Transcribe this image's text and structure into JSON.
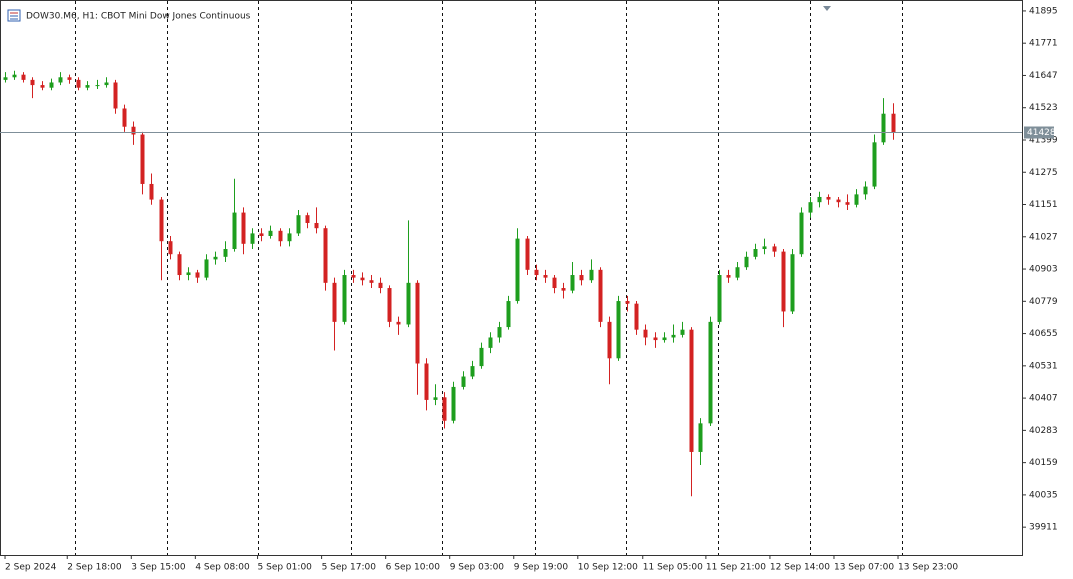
{
  "chart_data": {
    "type": "candlestick",
    "title": "DOW30.M6, H1:  CBOT Mini Dow Jones Continuous",
    "bull_color": "#1e9e1e",
    "bear_color": "#d32222",
    "ylim": [
      39804,
      41937
    ],
    "yticks": [
      41895,
      41771,
      41647,
      41523,
      41399,
      41275,
      41151,
      41027,
      40903,
      40779,
      40655,
      40531,
      40407,
      40283,
      40159,
      40035,
      39911
    ],
    "xlim": [
      -0.55,
      111.15
    ],
    "xticks": [
      {
        "value": 0,
        "label": "2 Sep 2024"
      },
      {
        "value": 6.8,
        "label": "2 Sep 18:00"
      },
      {
        "value": 13.8,
        "label": "3 Sep 15:00"
      },
      {
        "value": 20.8,
        "label": "4 Sep 08:00"
      },
      {
        "value": 27.6,
        "label": "5 Sep 01:00"
      },
      {
        "value": 34.6,
        "label": "5 Sep 17:00"
      },
      {
        "value": 41.6,
        "label": "6 Sep 10:00"
      },
      {
        "value": 48.6,
        "label": "9 Sep 03:00"
      },
      {
        "value": 55.6,
        "label": "9 Sep 19:00"
      },
      {
        "value": 62.6,
        "label": "10 Sep 12:00"
      },
      {
        "value": 69.7,
        "label": "11 Sep 05:00"
      },
      {
        "value": 76.6,
        "label": "11 Sep 21:00"
      },
      {
        "value": 83.6,
        "label": "12 Sep 14:00"
      },
      {
        "value": 90.6,
        "label": "13 Sep 07:00"
      },
      {
        "value": 97.6,
        "label": "13 Sep 23:00"
      }
    ],
    "separators": [
      7.65,
      17.7,
      27.7,
      37.8,
      47.8,
      57.9,
      67.9,
      77.9,
      88.0,
      98.0
    ],
    "current_price": 41428,
    "candles": [
      [
        41630,
        41660,
        41620,
        41640
      ],
      [
        41640,
        41665,
        41630,
        41650
      ],
      [
        41650,
        41660,
        41620,
        41630
      ],
      [
        41630,
        41640,
        41560,
        41610
      ],
      [
        41610,
        41625,
        41590,
        41600
      ],
      [
        41600,
        41635,
        41590,
        41620
      ],
      [
        41620,
        41660,
        41610,
        41640
      ],
      [
        41640,
        41650,
        41615,
        41630
      ],
      [
        41630,
        41640,
        41590,
        41600
      ],
      [
        41600,
        41625,
        41590,
        41610
      ],
      [
        41610,
        41630,
        41595,
        41610
      ],
      [
        41610,
        41640,
        41600,
        41620
      ],
      [
        41620,
        41630,
        41500,
        41520
      ],
      [
        41520,
        41535,
        41430,
        41450
      ],
      [
        41450,
        41470,
        41380,
        41420
      ],
      [
        41420,
        41430,
        41190,
        41230
      ],
      [
        41230,
        41270,
        41150,
        41170
      ],
      [
        41170,
        41180,
        40860,
        41010
      ],
      [
        41010,
        41030,
        40940,
        40960
      ],
      [
        40960,
        40970,
        40860,
        40880
      ],
      [
        40880,
        40910,
        40860,
        40890
      ],
      [
        40890,
        40900,
        40850,
        40870
      ],
      [
        40870,
        40960,
        40860,
        40940
      ],
      [
        40940,
        40970,
        40920,
        40950
      ],
      [
        40950,
        41010,
        40930,
        40980
      ],
      [
        40980,
        41250,
        40970,
        41120
      ],
      [
        41120,
        41140,
        40960,
        41000
      ],
      [
        41000,
        41060,
        40980,
        41040
      ],
      [
        41040,
        41060,
        41010,
        41030
      ],
      [
        41030,
        41070,
        41020,
        41050
      ],
      [
        41050,
        41060,
        40990,
        41010
      ],
      [
        41010,
        41060,
        40990,
        41040
      ],
      [
        41040,
        41130,
        41030,
        41110
      ],
      [
        41110,
        41120,
        41060,
        41080
      ],
      [
        41080,
        41140,
        41040,
        41060
      ],
      [
        41060,
        41070,
        40820,
        40850
      ],
      [
        40850,
        40870,
        40590,
        40700
      ],
      [
        40700,
        40900,
        40690,
        40880
      ],
      [
        40880,
        40900,
        40850,
        40870
      ],
      [
        40870,
        40890,
        40840,
        40860
      ],
      [
        40860,
        40880,
        40830,
        40850
      ],
      [
        40850,
        40870,
        40810,
        40830
      ],
      [
        40830,
        40840,
        40680,
        40700
      ],
      [
        40700,
        40720,
        40650,
        40690
      ],
      [
        40690,
        41090,
        40680,
        40850
      ],
      [
        40850,
        40860,
        40420,
        40540
      ],
      [
        40540,
        40560,
        40360,
        40400
      ],
      [
        40400,
        40460,
        40380,
        40410
      ],
      [
        40410,
        40430,
        40290,
        40320
      ],
      [
        40320,
        40470,
        40310,
        40450
      ],
      [
        40450,
        40510,
        40440,
        40490
      ],
      [
        40490,
        40550,
        40480,
        40530
      ],
      [
        40530,
        40620,
        40520,
        40600
      ],
      [
        40600,
        40660,
        40580,
        40640
      ],
      [
        40640,
        40700,
        40620,
        40680
      ],
      [
        40680,
        40800,
        40670,
        40780
      ],
      [
        40780,
        41060,
        40770,
        41020
      ],
      [
        41020,
        41030,
        40880,
        40900
      ],
      [
        40900,
        40920,
        40860,
        40880
      ],
      [
        40880,
        40900,
        40850,
        40870
      ],
      [
        40870,
        40880,
        40810,
        40830
      ],
      [
        40830,
        40850,
        40790,
        40820
      ],
      [
        40820,
        40930,
        40810,
        40880
      ],
      [
        40880,
        40900,
        40840,
        40860
      ],
      [
        40860,
        40940,
        40850,
        40900
      ],
      [
        40900,
        40910,
        40680,
        40700
      ],
      [
        40700,
        40720,
        40460,
        40560
      ],
      [
        40560,
        40800,
        40550,
        40780
      ],
      [
        40780,
        40800,
        40740,
        40770
      ],
      [
        40770,
        40780,
        40650,
        40670
      ],
      [
        40670,
        40690,
        40610,
        40640
      ],
      [
        40640,
        40660,
        40600,
        40630
      ],
      [
        40630,
        40660,
        40620,
        40640
      ],
      [
        40640,
        40690,
        40620,
        40650
      ],
      [
        40650,
        40700,
        40640,
        40670
      ],
      [
        40670,
        40680,
        40030,
        40200
      ],
      [
        40200,
        40330,
        40150,
        40310
      ],
      [
        40310,
        40720,
        40300,
        40700
      ],
      [
        40700,
        40900,
        40690,
        40880
      ],
      [
        40880,
        40900,
        40850,
        40870
      ],
      [
        40870,
        40930,
        40860,
        40910
      ],
      [
        40910,
        40970,
        40900,
        40950
      ],
      [
        40950,
        41000,
        40940,
        40980
      ],
      [
        40980,
        41020,
        40960,
        40990
      ],
      [
        40990,
        41000,
        40950,
        40970
      ],
      [
        40970,
        40980,
        40680,
        40740
      ],
      [
        40740,
        40980,
        40730,
        40960
      ],
      [
        40960,
        41140,
        40950,
        41120
      ],
      [
        41120,
        41180,
        41100,
        41160
      ],
      [
        41160,
        41200,
        41140,
        41180
      ],
      [
        41180,
        41190,
        41150,
        41170
      ],
      [
        41170,
        41180,
        41140,
        41160
      ],
      [
        41160,
        41190,
        41130,
        41150
      ],
      [
        41150,
        41210,
        41140,
        41190
      ],
      [
        41190,
        41240,
        41170,
        41220
      ],
      [
        41220,
        41420,
        41210,
        41390
      ],
      [
        41390,
        41560,
        41380,
        41500
      ],
      [
        41500,
        41540,
        41400,
        41428
      ]
    ]
  }
}
